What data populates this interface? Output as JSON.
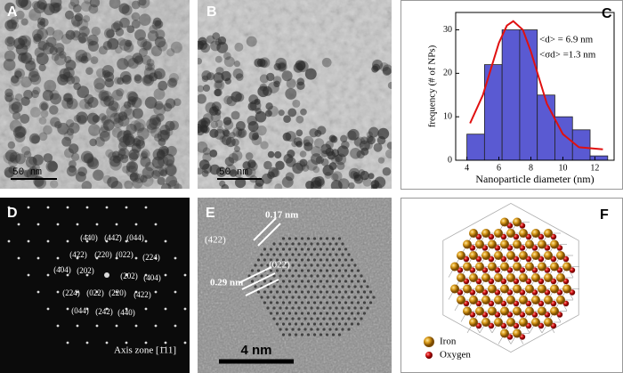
{
  "panels": {
    "a": {
      "label": "A",
      "scale_bar": "50 nm"
    },
    "b": {
      "label": "B",
      "scale_bar": "50 nm"
    },
    "c": {
      "label": "C"
    },
    "d": {
      "label": "D",
      "reflections": [
        "(4̄40)",
        "(442̄)",
        "(044)",
        "(422)",
        "(220)",
        "(022)",
        "(224)",
        "(4̄04)",
        "(202)",
        "(2̄02)",
        "(404)",
        "(224)",
        "(022)",
        "(220)",
        "(422)",
        "(044)",
        "(242)",
        "(440)"
      ],
      "caption": "Axis zone [1̄11]"
    },
    "e": {
      "label": "E",
      "annotations": [
        "0.17 nm",
        "(422)",
        "(022̄)",
        "0.29 nm"
      ],
      "scale_bar": "4 nm"
    },
    "f": {
      "label": "F",
      "legend": [
        "Iron",
        "Oxygen"
      ]
    }
  },
  "chart_data": {
    "type": "histogram",
    "bins": [
      4,
      5.1,
      6.2,
      7.3,
      8.4,
      9.5,
      10.6,
      11.7,
      12.8
    ],
    "values": [
      6,
      22,
      30,
      30,
      15,
      10,
      7,
      1
    ],
    "color": "#5a5ad2",
    "fit": {
      "color": "#e01010",
      "x": [
        4.2,
        5,
        5.5,
        6,
        6.5,
        6.9,
        7.5,
        8,
        8.5,
        9,
        10,
        11,
        12.5
      ],
      "values": [
        8.5,
        15,
        21,
        27,
        31,
        32,
        30,
        25,
        19,
        13,
        6,
        3,
        2.5
      ]
    },
    "xlim": [
      3.3,
      13.2
    ],
    "xticks": [
      4,
      6,
      8,
      10,
      12
    ],
    "ylim": [
      0,
      34
    ],
    "yticks": [
      0,
      10,
      20,
      30
    ],
    "xlabel": "Nanoparticle diameter (nm)",
    "ylabel": "frequency (# of NPs)",
    "annotations": [
      "<d> = 6.9 nm",
      "<σd> =1.3 nm"
    ]
  }
}
